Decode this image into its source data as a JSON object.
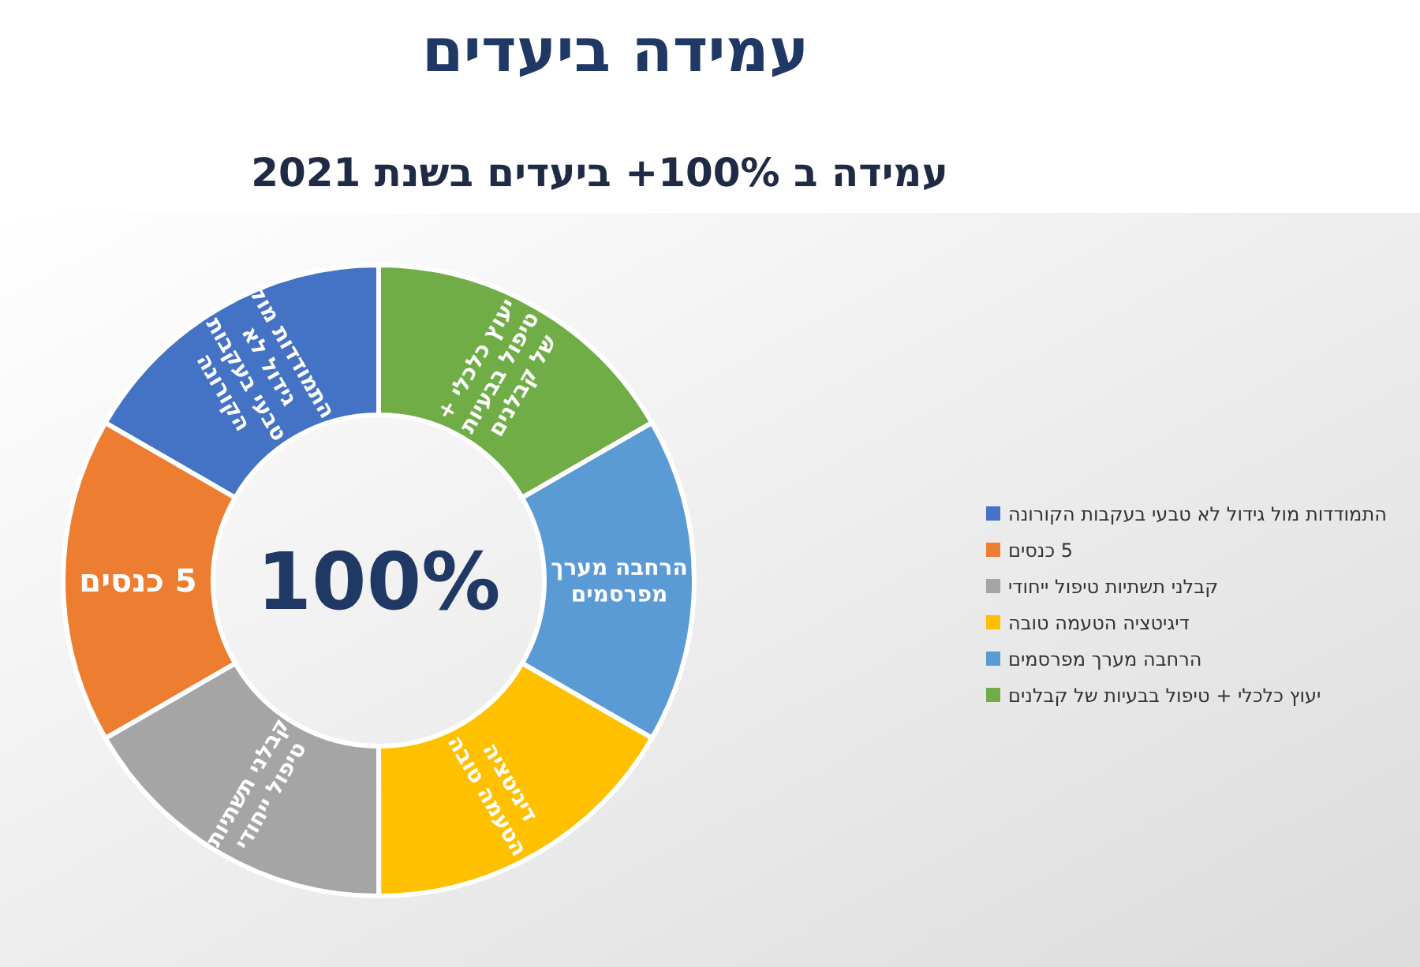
{
  "chart_data": {
    "type": "donut",
    "title": "עמידה ביעדים",
    "subtitle": "עמידה ב 100%+ ביעדים בשנת 2021",
    "categories": [
      "התמודדות מול גידול לא טבעי בעקבות הקורונה",
      "5 כנסים",
      "קבלני תשתיות טיפול ייחודי",
      "דיגיטציה הטעמה טובה",
      "הרחבה מערך מפרסמים",
      "יעוץ כלכלי + טיפול בבעיות של קבלנים"
    ],
    "values": [
      16.67,
      16.67,
      16.67,
      16.67,
      16.66,
      16.66
    ],
    "colors": [
      "#4472c4",
      "#ed7d31",
      "#a5a5a5",
      "#ffc000",
      "#5b9bd5",
      "#70ad47"
    ],
    "annotations": [
      "100%"
    ],
    "legend": "right"
  }
}
